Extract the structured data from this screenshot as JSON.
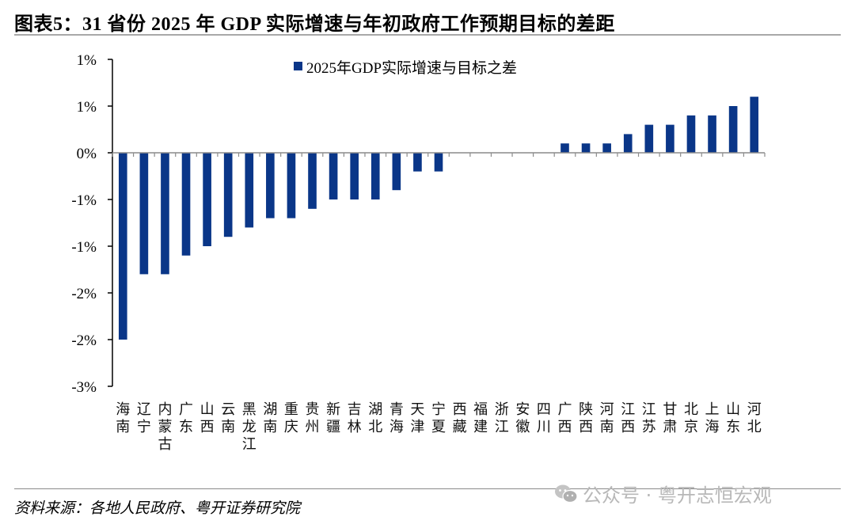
{
  "header": {
    "title": "图表5：31 省份 2025 年 GDP 实际增速与年初政府工作预期目标的差距"
  },
  "chart_data": {
    "type": "bar",
    "title": "图表5：31 省份 2025 年 GDP 实际增速与年初政府工作预期目标的差距",
    "xlabel": "",
    "ylabel": "",
    "ylim": [
      -2.5,
      1.0
    ],
    "yticks": [
      1.0,
      0.5,
      0.0,
      -0.5,
      -1.0,
      -1.5,
      -2.0,
      -2.5
    ],
    "ytick_labels": [
      "1%",
      "1%",
      "0%",
      "-1%",
      "-1%",
      "-2%",
      "-2%",
      "-3%"
    ],
    "grid": false,
    "legend_position": "top-center",
    "bar_color": "#0a3688",
    "categories": [
      "海南",
      "辽宁",
      "内蒙古",
      "广东",
      "山西",
      "云南",
      "黑龙江",
      "湖南",
      "重庆",
      "贵州",
      "新疆",
      "吉林",
      "湖北",
      "青海",
      "天津",
      "宁夏",
      "西藏",
      "福建",
      "浙江",
      "安徽",
      "四川",
      "广西",
      "陕西",
      "河南",
      "江西",
      "江苏",
      "甘肃",
      "北京",
      "上海",
      "山东",
      "河北"
    ],
    "series": [
      {
        "name": "2025年GDP实际增速与目标之差",
        "unit": "%",
        "values": [
          -2.0,
          -1.3,
          -1.3,
          -1.1,
          -1.0,
          -0.9,
          -0.8,
          -0.7,
          -0.7,
          -0.6,
          -0.5,
          -0.5,
          -0.5,
          -0.4,
          -0.2,
          -0.2,
          0.0,
          0.0,
          0.0,
          0.0,
          0.0,
          0.1,
          0.1,
          0.1,
          0.2,
          0.3,
          0.3,
          0.4,
          0.4,
          0.5,
          0.6
        ]
      }
    ]
  },
  "footer": {
    "source": "资料来源：各地人民政府、粤开证券研究院",
    "watermark": "公众号 · 粤开志恒宏观"
  }
}
